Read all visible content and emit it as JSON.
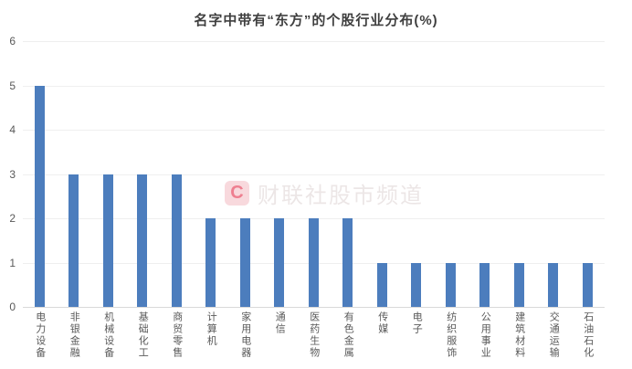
{
  "chart_data": {
    "type": "bar",
    "title": "名字中带有“东方”的个股行业分布(%)",
    "categories": [
      "电力设备",
      "非银金融",
      "机械设备",
      "基础化工",
      "商贸零售",
      "计算机",
      "家用电器",
      "通信",
      "医药生物",
      "有色金属",
      "传媒",
      "电子",
      "纺织服饰",
      "公用事业",
      "建筑材料",
      "交通运输",
      "石油石化"
    ],
    "values": [
      5,
      3,
      3,
      3,
      3,
      2,
      2,
      2,
      2,
      2,
      1,
      1,
      1,
      1,
      1,
      1,
      1
    ],
    "xlabel": "",
    "ylabel": "",
    "ylim": [
      0,
      6
    ],
    "yticks": [
      0,
      1,
      2,
      3,
      4,
      5,
      6
    ],
    "grid": "horizontal",
    "legend_position": "none",
    "bar_color": "#4C7DBD",
    "gridline_color": "#efefef",
    "axis_line_color": "#d9d9d9",
    "tick_label_color": "#595959",
    "title_color": "#3f3f3f"
  },
  "watermark": {
    "logo_letter": "C",
    "text": "财联社股市频道",
    "logo_bg_color": "#f8d9dd",
    "logo_letter_color": "#ee7f90",
    "text_color": "rgba(196,178,178,0.32)"
  }
}
